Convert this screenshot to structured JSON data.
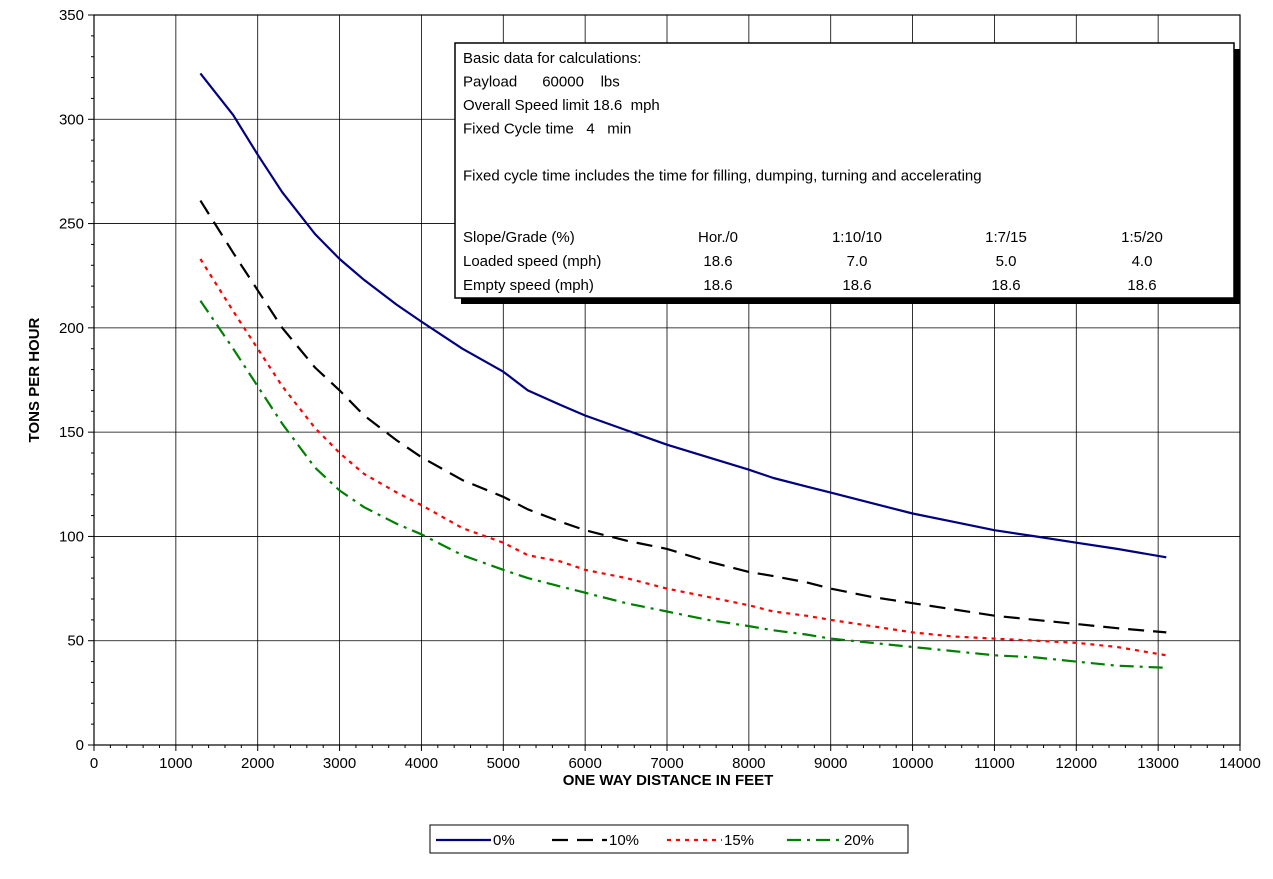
{
  "chart_data": {
    "type": "line",
    "xlabel": "ONE WAY DISTANCE IN FEET",
    "ylabel": "TONS PER HOUR",
    "xlim": [
      0,
      14000
    ],
    "ylim": [
      0,
      350
    ],
    "x_ticks": [
      "0",
      "1000",
      "2000",
      "3000",
      "4000",
      "5000",
      "6000",
      "7000",
      "8000",
      "9000",
      "10000",
      "11000",
      "12000",
      "13000",
      "14000"
    ],
    "y_ticks": [
      "0",
      "50",
      "100",
      "150",
      "200",
      "250",
      "300",
      "350"
    ],
    "grid": true,
    "legend_position": "bottom",
    "series": [
      {
        "name": "0%",
        "color": "#000080",
        "dash": "solid",
        "x": [
          1300,
          1700,
          2000,
          2300,
          2700,
          3000,
          3300,
          3700,
          4000,
          4500,
          5000,
          5300,
          5700,
          6000,
          6500,
          7000,
          7500,
          8000,
          8300,
          8700,
          9000,
          9500,
          10000,
          10500,
          11000,
          11500,
          12000,
          12500,
          13100
        ],
        "values": [
          322,
          302,
          283,
          265,
          245,
          233,
          223,
          211,
          203,
          190,
          179,
          170,
          163,
          158,
          151,
          144,
          138,
          132,
          128,
          124,
          121,
          116,
          111,
          107,
          103,
          100,
          97,
          94,
          90
        ]
      },
      {
        "name": "10%",
        "color": "#000000",
        "dash": "long",
        "x": [
          1300,
          1700,
          2000,
          2300,
          2700,
          3000,
          3300,
          3700,
          4000,
          4500,
          5000,
          5300,
          5700,
          6000,
          6500,
          7000,
          7500,
          8000,
          8300,
          8700,
          9000,
          9500,
          10000,
          10500,
          11000,
          11500,
          12000,
          12500,
          13100
        ],
        "values": [
          261,
          236,
          218,
          200,
          181,
          170,
          158,
          146,
          138,
          127,
          119,
          113,
          107,
          103,
          98,
          94,
          88,
          83,
          81,
          78,
          75,
          71,
          68,
          65,
          62,
          60,
          58,
          56,
          54
        ]
      },
      {
        "name": "15%",
        "color": "#ff0000",
        "dash": "dot",
        "x": [
          1300,
          1700,
          2000,
          2300,
          2700,
          3000,
          3300,
          3700,
          4000,
          4500,
          5000,
          5300,
          5700,
          6000,
          6500,
          7000,
          7500,
          8000,
          8300,
          8700,
          9000,
          9500,
          10000,
          10500,
          11000,
          11500,
          12000,
          12500,
          13100
        ],
        "values": [
          233,
          208,
          190,
          172,
          152,
          140,
          130,
          121,
          115,
          104,
          97,
          91,
          88,
          84,
          80,
          75,
          71,
          67,
          64,
          62,
          60,
          57,
          54,
          52,
          51,
          50,
          49,
          47,
          43
        ]
      },
      {
        "name": "20%",
        "color": "#008000",
        "dash": "dashdot",
        "x": [
          1300,
          1700,
          2000,
          2300,
          2700,
          3000,
          3300,
          3700,
          4000,
          4500,
          5000,
          5300,
          5700,
          6000,
          6500,
          7000,
          7500,
          8000,
          8300,
          8700,
          9000,
          9500,
          10000,
          10500,
          11000,
          11500,
          12000,
          12500,
          13100
        ],
        "values": [
          213,
          190,
          172,
          154,
          133,
          122,
          114,
          106,
          101,
          91,
          84,
          80,
          76,
          73,
          68,
          64,
          60,
          57,
          55,
          53,
          51,
          49,
          47,
          45,
          43,
          42,
          40,
          38,
          37
        ]
      }
    ],
    "info_box": {
      "lines": [
        "Basic data for calculations:",
        "Payload      60000    lbs",
        "Overall Speed limit 18.6  mph",
        "Fixed Cycle time   4   min",
        "",
        "Fixed cycle time includes the time for filling, dumping, turning and accelerating"
      ],
      "table": [
        [
          "Slope/Grade (%)",
          "Hor./0",
          "1:10/10",
          "1:7/15",
          "1:5/20"
        ],
        [
          "Loaded speed (mph)",
          "18.6",
          "7.0",
          "5.0",
          "4.0"
        ],
        [
          "Empty speed (mph)",
          "18.6",
          "18.6",
          "18.6",
          "18.6"
        ]
      ]
    }
  }
}
